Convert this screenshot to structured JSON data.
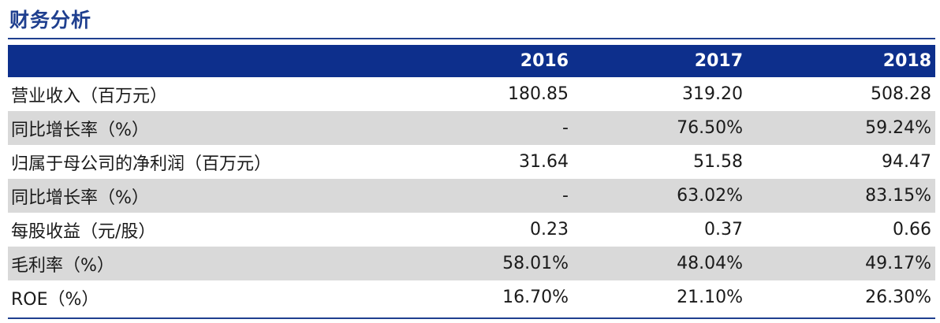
{
  "title": "财务分析",
  "table": {
    "label_header": "",
    "years": [
      "2016",
      "2017",
      "2018"
    ],
    "rows": [
      {
        "label": "营业收入（百万元）",
        "values": [
          "180.85",
          "319.20",
          "508.28"
        ],
        "shaded": false
      },
      {
        "label": "同比增长率（%）",
        "values": [
          "-",
          "76.50%",
          "59.24%"
        ],
        "shaded": true
      },
      {
        "label": "归属于母公司的净利润（百万元）",
        "values": [
          "31.64",
          "51.58",
          "94.47"
        ],
        "shaded": false
      },
      {
        "label": "同比增长率（%）",
        "values": [
          "-",
          "63.02%",
          "83.15%"
        ],
        "shaded": true
      },
      {
        "label": "每股收益（元/股）",
        "values": [
          "0.23",
          "0.37",
          "0.66"
        ],
        "shaded": false
      },
      {
        "label": "毛利率（%）",
        "values": [
          "58.01%",
          "48.04%",
          "49.17%"
        ],
        "shaded": true
      },
      {
        "label": "ROE（%）",
        "values": [
          "16.70%",
          "21.10%",
          "26.30%"
        ],
        "shaded": false
      }
    ]
  },
  "colors": {
    "accent": "#1f3f8f",
    "header_bg": "#0d2f8c",
    "row_shade": "#d9d9d9"
  }
}
